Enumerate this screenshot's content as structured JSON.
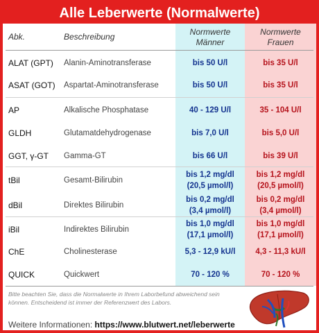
{
  "title": "Alle Leberwerte (Normalwerte)",
  "header": {
    "abk": "Abk.",
    "beschreibung": "Beschreibung",
    "men_line1": "Normwerte",
    "men_line2": "Männer",
    "women_line1": "Normwerte",
    "women_line2": "Frauen"
  },
  "rows": [
    {
      "abk": "ALAT (GPT)",
      "desc": "Alanin-Aminotransferase",
      "men1": "bis 50 U/l",
      "men2": "",
      "women1": "bis 35 U/l",
      "women2": ""
    },
    {
      "abk": "ASAT (GOT)",
      "desc": "Aspartat-Aminotransferase",
      "men1": "bis 50 U/l",
      "men2": "",
      "women1": "bis 35 U/l",
      "women2": ""
    },
    {
      "abk": "AP",
      "desc": "Alkalische Phosphatase",
      "men1": "40 - 129 U/l",
      "men2": "",
      "women1": "35 - 104 U/l",
      "women2": ""
    },
    {
      "abk": "GLDH",
      "desc": "Glutamatdehydrogenase",
      "men1": "bis 7,0 U/l",
      "men2": "",
      "women1": "bis 5,0 U/l",
      "women2": ""
    },
    {
      "abk": "GGT, γ-GT",
      "desc": "Gamma-GT",
      "men1": "bis 66 U/l",
      "men2": "",
      "women1": "bis 39 U/l",
      "women2": ""
    },
    {
      "abk": "tBil",
      "desc": "Gesamt-Bilirubin",
      "men1": "bis 1,2 mg/dl",
      "men2": "(20,5 µmol/l)",
      "women1": "bis 1,2 mg/dl",
      "women2": "(20,5 µmol/l)"
    },
    {
      "abk": "dBil",
      "desc": "Direktes Bilirubin",
      "men1": "bis 0,2 mg/dl",
      "men2": "(3,4 µmol/l)",
      "women1": "bis 0,2 mg/dl",
      "women2": "(3,4 µmol/l)"
    },
    {
      "abk": "iBil",
      "desc": "Indirektes Bilirubin",
      "men1": "bis 1,0 mg/dl",
      "men2": "(17,1 µmol/l)",
      "women1": "bis 1,0 mg/dl",
      "women2": "(17,1 µmol/l)"
    },
    {
      "abk": "ChE",
      "desc": "Cholinesterase",
      "men1": "5,3 - 12,9 kU/l",
      "men2": "",
      "women1": "4,3 - 11,3 kU/l",
      "women2": ""
    },
    {
      "abk": "QUICK",
      "desc": "Quickwert",
      "men1": "70 - 120 %",
      "men2": "",
      "women1": "70 - 120 %",
      "women2": ""
    }
  ],
  "note": "Bitte beachten Sie, dass die Normalwerte in Ihrem Laborbefund abweichend sein können. Entscheidend ist immer der Referenzwert des Labors.",
  "info_label": "Weitere Informationen:",
  "info_link": "https://www.blutwert.net/leberwerte",
  "colors": {
    "accent": "#e3201f",
    "men_bg": "#d4f3f6",
    "women_bg": "#fad3d3",
    "men_text": "#13338f",
    "women_text": "#b5121b"
  },
  "illustration": "liver-icon"
}
